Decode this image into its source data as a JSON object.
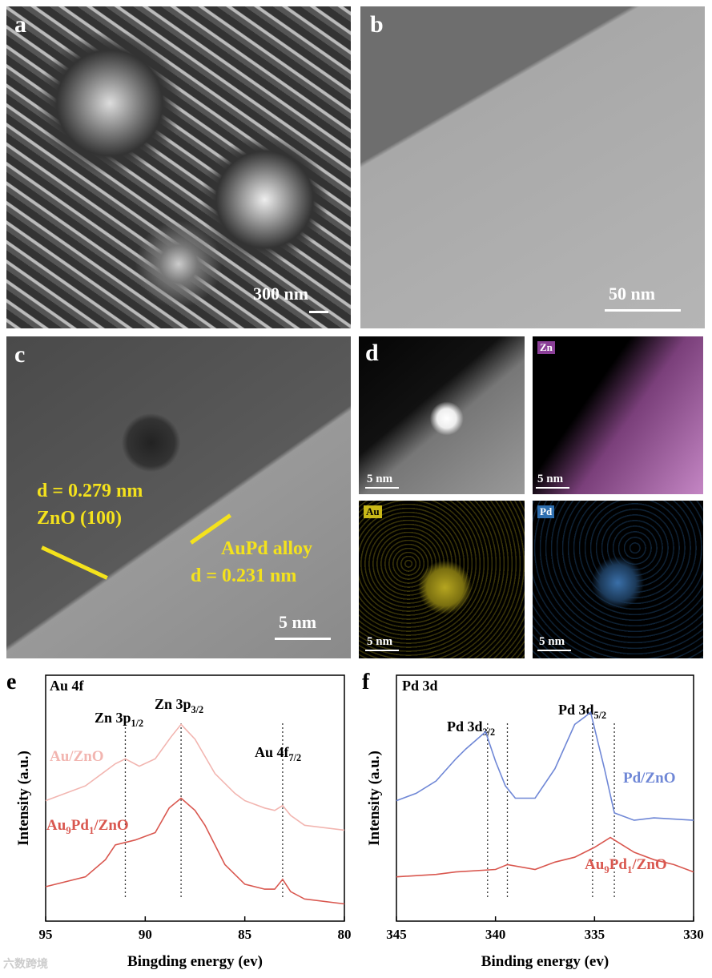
{
  "images": [
    {
      "letter": "a",
      "scale": "300 nm"
    },
    {
      "letter": "b",
      "scale": "50 nm"
    },
    {
      "letter": "c",
      "scale": "5 nm",
      "notes": [
        "d = 0.279 nm",
        "ZnO (100)",
        "AuPd alloy",
        "d = 0.231 nm"
      ]
    },
    {
      "letter": "d",
      "maps": [
        {
          "element": null,
          "scale": "5 nm"
        },
        {
          "element": "Zn",
          "scale": "5 nm"
        },
        {
          "element": "Au",
          "scale": "5 nm"
        },
        {
          "element": "Pd",
          "scale": "5 nm"
        }
      ]
    }
  ],
  "watermark": "六数跨境",
  "chart_data": [
    {
      "type": "line",
      "letter": "e",
      "title": "Au 4f",
      "x_label": "Bingding energy (ev)",
      "y_label": "Intensity (a.u.)",
      "xlim": [
        95,
        80
      ],
      "xticks": [
        95,
        90,
        85,
        80
      ],
      "ylim": [
        0,
        100
      ],
      "vlines": [
        91,
        88.2,
        83.1
      ],
      "peaks": [
        [
          "Zn 3p",
          "1/2"
        ],
        [
          "Zn 3p",
          "3/2"
        ],
        [
          "Au 4f",
          "7/2"
        ]
      ],
      "series": [
        {
          "name": [
            "Au/ZnO"
          ],
          "color": "#f2b5b0",
          "x": [
            95,
            93,
            91.5,
            91,
            90.3,
            89.5,
            88.7,
            88.2,
            87.5,
            86.5,
            85.5,
            85,
            84,
            83.5,
            83.1,
            82.7,
            82,
            80
          ],
          "values": [
            49,
            55,
            64,
            66,
            63,
            66,
            75,
            80,
            74,
            60,
            52,
            49,
            46,
            45,
            47,
            43,
            39,
            37
          ]
        },
        {
          "name": [
            "Au",
            "9",
            "Pd",
            "1",
            "/ZnO"
          ],
          "color": "#d9574f",
          "x": [
            95,
            93,
            92,
            91.5,
            90.5,
            89.5,
            88.8,
            88.2,
            87.5,
            87,
            86,
            85,
            84,
            83.5,
            83.1,
            82.7,
            82,
            80
          ],
          "values": [
            14,
            18,
            25,
            31,
            33,
            36,
            46,
            50,
            45,
            39,
            23,
            15,
            13,
            13,
            17,
            12,
            9,
            7
          ]
        }
      ]
    },
    {
      "type": "line",
      "letter": "f",
      "title": "Pd 3d",
      "x_label": "Binding energy (ev)",
      "y_label": "Intensity (a.u.)",
      "xlim": [
        345,
        330
      ],
      "xticks": [
        345,
        340,
        335,
        330
      ],
      "ylim": [
        0,
        100
      ],
      "vlines": [
        340.4,
        339.4,
        335.1,
        334.0
      ],
      "peaks": [
        [
          "Pd 3d",
          "3/2"
        ],
        [
          "Pd 3d",
          "5/2"
        ]
      ],
      "series": [
        {
          "name": [
            "Pd/ZnO"
          ],
          "color": "#6f87d6",
          "x": [
            345,
            344,
            343,
            342,
            341.5,
            340.5,
            340,
            339.5,
            339,
            338,
            337,
            336,
            335.5,
            335.2,
            334.5,
            334,
            333,
            332,
            330
          ],
          "values": [
            49,
            52,
            57,
            66,
            70,
            77,
            65,
            55,
            50,
            50,
            62,
            80,
            83,
            85,
            62,
            44,
            41,
            42,
            41
          ]
        },
        {
          "name": [
            "Au",
            "9",
            "Pd",
            "1",
            "/ZnO"
          ],
          "color": "#d9574f",
          "x": [
            345,
            343,
            342,
            340,
            339.4,
            338,
            337,
            336,
            335,
            334.2,
            333,
            332,
            331,
            330
          ],
          "values": [
            18,
            19,
            20,
            21,
            23,
            21,
            24,
            26,
            30,
            34,
            28,
            25,
            23,
            20
          ]
        }
      ]
    }
  ]
}
